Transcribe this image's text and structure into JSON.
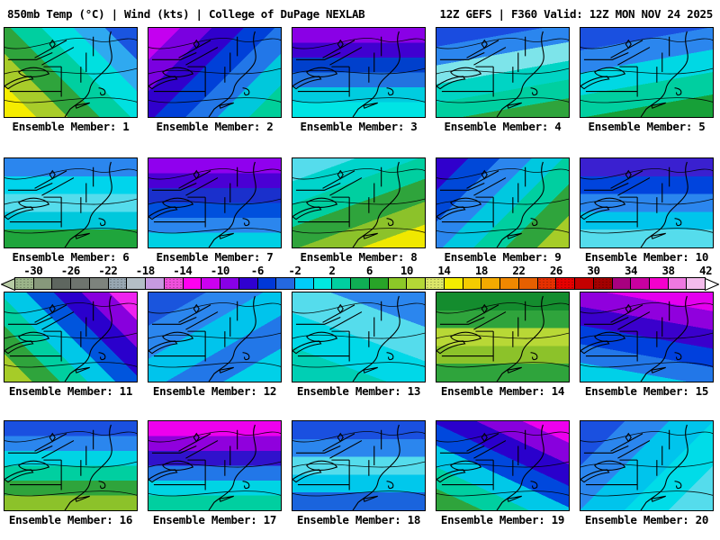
{
  "header": {
    "left": "850mb Temp (°C) | Wind (kts) | College of DuPage NEXLAB",
    "right": "12Z GEFS | F360 Valid: 12Z MON NOV 24 2025"
  },
  "chart_data": {
    "type": "heatmap",
    "title": "850mb Temp (°C) | Wind (kts) GEFS ensemble grid",
    "units": "°C",
    "colorbar_tick_labels": [
      "-30",
      "-26",
      "-22",
      "-18",
      "-14",
      "-10",
      "-6",
      "-2",
      "2",
      "6",
      "10",
      "14",
      "18",
      "22",
      "26",
      "30",
      "34",
      "38",
      "42"
    ],
    "colorbar_range": [
      -32,
      42
    ]
  },
  "colorbar": {
    "ticks": [
      {
        "label": "-30",
        "value": -30
      },
      {
        "label": "-26",
        "value": -26
      },
      {
        "label": "-22",
        "value": -22
      },
      {
        "label": "-18",
        "value": -18
      },
      {
        "label": "-14",
        "value": -14
      },
      {
        "label": "-10",
        "value": -10
      },
      {
        "label": "-6",
        "value": -6
      },
      {
        "label": "-2",
        "value": -2
      },
      {
        "label": "2",
        "value": 2
      },
      {
        "label": "6",
        "value": 6
      },
      {
        "label": "10",
        "value": 10
      },
      {
        "label": "14",
        "value": 14
      },
      {
        "label": "18",
        "value": 18
      },
      {
        "label": "22",
        "value": 22
      },
      {
        "label": "26",
        "value": 26
      },
      {
        "label": "30",
        "value": 30
      },
      {
        "label": "34",
        "value": 34
      },
      {
        "label": "38",
        "value": 38
      },
      {
        "label": "42",
        "value": 42
      }
    ],
    "range": [
      -32,
      42
    ],
    "left_arrow_color": "#b7cba4",
    "right_arrow_color": "#ffffff",
    "segments": [
      {
        "from": -32,
        "color": "#9cb58a",
        "hatched": true
      },
      {
        "from": -30,
        "color": "#87987b",
        "hatched": false
      },
      {
        "from": -28,
        "color": "#5e665f",
        "hatched": false
      },
      {
        "from": -26,
        "color": "#6e746e",
        "hatched": false
      },
      {
        "from": -24,
        "color": "#7d837d",
        "hatched": false
      },
      {
        "from": -22,
        "color": "#98a7b2",
        "hatched": true
      },
      {
        "from": -20,
        "color": "#b4bec6",
        "hatched": false
      },
      {
        "from": -18,
        "color": "#c79ae0",
        "hatched": false
      },
      {
        "from": -16,
        "color": "#f050dc",
        "hatched": true
      },
      {
        "from": -14,
        "color": "#ff00f0",
        "hatched": false
      },
      {
        "from": -12,
        "color": "#cc00f0",
        "hatched": false
      },
      {
        "from": -10,
        "color": "#8800e6",
        "hatched": false
      },
      {
        "from": -8,
        "color": "#3000d0",
        "hatched": false
      },
      {
        "from": -6,
        "color": "#0038d8",
        "hatched": false
      },
      {
        "from": -4,
        "color": "#2468e0",
        "hatched": false
      },
      {
        "from": -2,
        "color": "#00ccf8",
        "hatched": false
      },
      {
        "from": 0,
        "color": "#00e8e0",
        "hatched": false
      },
      {
        "from": 2,
        "color": "#00cfa0",
        "hatched": false
      },
      {
        "from": 4,
        "color": "#0fae54",
        "hatched": false
      },
      {
        "from": 6,
        "color": "#28a428",
        "hatched": false
      },
      {
        "from": 8,
        "color": "#8cc828",
        "hatched": false
      },
      {
        "from": 10,
        "color": "#b4d836",
        "hatched": false
      },
      {
        "from": 12,
        "color": "#dce86a",
        "hatched": true
      },
      {
        "from": 14,
        "color": "#f4ec00",
        "hatched": false
      },
      {
        "from": 16,
        "color": "#f4cc00",
        "hatched": false
      },
      {
        "from": 18,
        "color": "#f4aa00",
        "hatched": false
      },
      {
        "from": 20,
        "color": "#f08800",
        "hatched": false
      },
      {
        "from": 22,
        "color": "#e66000",
        "hatched": false
      },
      {
        "from": 24,
        "color": "#e63000",
        "hatched": true
      },
      {
        "from": 26,
        "color": "#e60000",
        "hatched": true
      },
      {
        "from": 28,
        "color": "#c40000",
        "hatched": false
      },
      {
        "from": 30,
        "color": "#a40000",
        "hatched": true
      },
      {
        "from": 32,
        "color": "#a80080",
        "hatched": false
      },
      {
        "from": 34,
        "color": "#c800a0",
        "hatched": false
      },
      {
        "from": 36,
        "color": "#f400cc",
        "hatched": false
      },
      {
        "from": 38,
        "color": "#ee78e0",
        "hatched": false
      },
      {
        "from": 40,
        "color": "#f4bcec",
        "hatched": false
      }
    ]
  },
  "panels": [
    {
      "member": 1,
      "label": "Ensemble Member: 1",
      "gradient": {
        "angle": 45,
        "colors": [
          "#f5ec00",
          "#a8cc2a",
          "#2fa43c",
          "#00cfa0",
          "#00e0e0",
          "#2fa9f0",
          "#1a55e0"
        ]
      }
    },
    {
      "member": 2,
      "label": "Ensemble Member: 2",
      "gradient": {
        "angle": 135,
        "colors": [
          "#c400f0",
          "#7a00e0",
          "#3000cc",
          "#0040d8",
          "#2277e8",
          "#00c8dc",
          "#00cf9a"
        ]
      }
    },
    {
      "member": 3,
      "label": "Ensemble Member: 3",
      "gradient": {
        "angle": 180,
        "colors": [
          "#8a00e6",
          "#4000d0",
          "#0040cc",
          "#2273e0",
          "#00cce0",
          "#00e4e4"
        ]
      }
    },
    {
      "member": 4,
      "label": "Ensemble Member: 4",
      "gradient": {
        "angle": 170,
        "colors": [
          "#1a4ce0",
          "#2b86ee",
          "#7de4ea",
          "#00d4c4",
          "#00cfa0",
          "#2fa43c"
        ]
      }
    },
    {
      "member": 5,
      "label": "Ensemble Member: 5",
      "gradient": {
        "angle": 170,
        "colors": [
          "#1a50e0",
          "#2b86ee",
          "#00d8e4",
          "#00cfa0",
          "#17a038"
        ]
      }
    },
    {
      "member": 6,
      "label": "Ensemble Member: 6",
      "gradient": {
        "angle": 180,
        "colors": [
          "#2b86ee",
          "#00d4ec",
          "#55dcec",
          "#00c8dc",
          "#1fa53c"
        ]
      }
    },
    {
      "member": 7,
      "label": "Ensemble Member: 7",
      "gradient": {
        "angle": 180,
        "colors": [
          "#9000ee",
          "#4a00d4",
          "#1a30cc",
          "#0050dd",
          "#2b86ee",
          "#00d0e4"
        ]
      }
    },
    {
      "member": 8,
      "label": "Ensemble Member: 8",
      "gradient": {
        "angle": 160,
        "colors": [
          "#55dcec",
          "#00d4cc",
          "#00cfa0",
          "#2fa43c",
          "#8cc22a",
          "#f0e800"
        ]
      }
    },
    {
      "member": 9,
      "label": "Ensemble Member: 9",
      "gradient": {
        "angle": 135,
        "colors": [
          "#3000cc",
          "#0048d8",
          "#2b86ee",
          "#00c8e0",
          "#00cfa0",
          "#2fa43c",
          "#a6cc28"
        ]
      }
    },
    {
      "member": 10,
      "label": "Ensemble Member: 10",
      "gradient": {
        "angle": 180,
        "colors": [
          "#3a20d0",
          "#0044dd",
          "#2b86ee",
          "#00c4ec",
          "#55dcec"
        ]
      }
    },
    {
      "member": 11,
      "label": "Ensemble Member: 11",
      "gradient": {
        "angle": 225,
        "colors": [
          "#ee22ee",
          "#8800dd",
          "#2a00cc",
          "#0055dd",
          "#00c8e8",
          "#00cfa0",
          "#2fa43c",
          "#a6cc28"
        ]
      }
    },
    {
      "member": 12,
      "label": "Ensemble Member: 12",
      "gradient": {
        "angle": 150,
        "colors": [
          "#1a55dd",
          "#2b86ee",
          "#00c4ec",
          "#2277e8",
          "#00d0e8"
        ]
      }
    },
    {
      "member": 13,
      "label": "Ensemble Member: 13",
      "gradient": {
        "angle": 200,
        "colors": [
          "#2b86ee",
          "#55dcec",
          "#00d8e8",
          "#00cfb4"
        ]
      }
    },
    {
      "member": 14,
      "label": "Ensemble Member: 14",
      "gradient": {
        "angle": 180,
        "colors": [
          "#148c2e",
          "#2fa43c",
          "#b8d836",
          "#8cc22a",
          "#2fa43c"
        ]
      }
    },
    {
      "member": 15,
      "label": "Ensemble Member: 15",
      "gradient": {
        "angle": 190,
        "colors": [
          "#e400ee",
          "#9000dd",
          "#3a00cc",
          "#0040dd",
          "#2277e8",
          "#00d0e8"
        ]
      }
    },
    {
      "member": 16,
      "label": "Ensemble Member: 16",
      "gradient": {
        "angle": 180,
        "colors": [
          "#1a50e0",
          "#2b86ee",
          "#00d4e4",
          "#00cfa0",
          "#2fa43c",
          "#8cc22a"
        ]
      }
    },
    {
      "member": 17,
      "label": "Ensemble Member: 17",
      "gradient": {
        "angle": 180,
        "colors": [
          "#ee00ee",
          "#9000dd",
          "#3012cc",
          "#2277e8",
          "#00d4e4",
          "#00cfa0"
        ]
      }
    },
    {
      "member": 18,
      "label": "Ensemble Member: 18",
      "gradient": {
        "angle": 180,
        "colors": [
          "#1a50e0",
          "#2b86ee",
          "#55dcec",
          "#00c8ec",
          "#1a64dd"
        ]
      }
    },
    {
      "member": 19,
      "label": "Ensemble Member: 19",
      "gradient": {
        "angle": 205,
        "colors": [
          "#ee00ee",
          "#8800dd",
          "#2a00cc",
          "#0048dd",
          "#00c8e8",
          "#00cfa0",
          "#2fa43c"
        ]
      }
    },
    {
      "member": 20,
      "label": "Ensemble Member: 20",
      "gradient": {
        "angle": 135,
        "colors": [
          "#1a50e0",
          "#2b86ee",
          "#00c4ec",
          "#00dce8",
          "#55dcec"
        ]
      }
    }
  ]
}
